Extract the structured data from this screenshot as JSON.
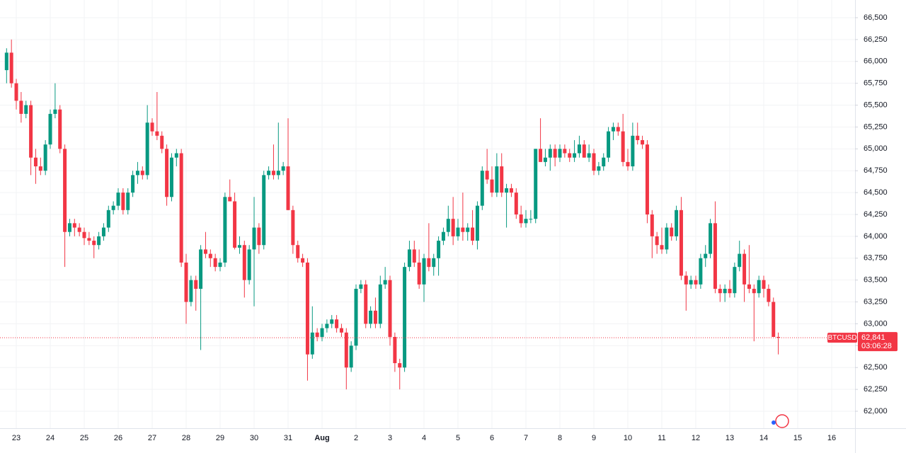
{
  "chart_data": {
    "type": "candlestick",
    "symbol": "BTCUSD",
    "last_price": {
      "value": 62841,
      "label": "62,841"
    },
    "countdown": "03:06:28",
    "up_color": "#089981",
    "down_color": "#f23645",
    "grid": true,
    "ylim": [
      61806,
      66702
    ],
    "yticks": [
      {
        "value": 62000,
        "label": "62,000"
      },
      {
        "value": 62250,
        "label": "62,250"
      },
      {
        "value": 62500,
        "label": "62,500"
      },
      {
        "value": 62750,
        "label": "62,750"
      },
      {
        "value": 63000,
        "label": "63,000"
      },
      {
        "value": 63250,
        "label": "63,250"
      },
      {
        "value": 63500,
        "label": "63,500"
      },
      {
        "value": 63750,
        "label": "63,750"
      },
      {
        "value": 64000,
        "label": "64,000"
      },
      {
        "value": 64250,
        "label": "64,250"
      },
      {
        "value": 64500,
        "label": "64,500"
      },
      {
        "value": 64750,
        "label": "64,750"
      },
      {
        "value": 65000,
        "label": "65,000"
      },
      {
        "value": 65250,
        "label": "65,250"
      },
      {
        "value": 65500,
        "label": "65,500"
      },
      {
        "value": 65750,
        "label": "65,750"
      },
      {
        "value": 66000,
        "label": "66,000"
      },
      {
        "value": 66250,
        "label": "66,250"
      },
      {
        "value": 66500,
        "label": "66,500"
      }
    ],
    "categories": [
      null,
      null,
      "23",
      null,
      null,
      null,
      null,
      null,
      null,
      "24",
      null,
      null,
      null,
      null,
      null,
      null,
      "25",
      null,
      null,
      null,
      null,
      null,
      null,
      "26",
      null,
      null,
      null,
      null,
      null,
      null,
      "27",
      null,
      null,
      null,
      null,
      null,
      null,
      "28",
      null,
      null,
      null,
      null,
      null,
      null,
      "29",
      null,
      null,
      null,
      null,
      null,
      null,
      "30",
      null,
      null,
      null,
      null,
      null,
      null,
      "31",
      null,
      null,
      null,
      null,
      null,
      null,
      "Aug",
      null,
      null,
      null,
      null,
      null,
      null,
      "2",
      null,
      null,
      null,
      null,
      null,
      null,
      "3",
      null,
      null,
      null,
      null,
      null,
      null,
      "4",
      null,
      null,
      null,
      null,
      null,
      null,
      "5",
      null,
      null,
      null,
      null,
      null,
      null,
      "6",
      null,
      null,
      null,
      null,
      null,
      null,
      "7",
      null,
      null,
      null,
      null,
      null,
      null,
      "8",
      null,
      null,
      null,
      null,
      null,
      null,
      "9",
      null,
      null,
      null,
      null,
      null,
      null,
      "10",
      null,
      null,
      null,
      null,
      null,
      null,
      "11",
      null,
      null,
      null,
      null,
      null,
      null,
      "12",
      null,
      null,
      null,
      null,
      null,
      null,
      "13",
      null,
      null,
      null,
      null,
      null,
      null,
      "14",
      null,
      null,
      null,
      null,
      null,
      null,
      "15",
      null,
      null,
      null,
      null,
      null,
      null,
      "16"
    ],
    "open": [
      65900,
      66100,
      65750,
      65550,
      65400,
      65500,
      64900,
      64800,
      64750,
      65050,
      65400,
      65450,
      65000,
      64050,
      64150,
      64100,
      64050,
      63980,
      63950,
      63900,
      64000,
      64100,
      64300,
      64350,
      64500,
      64300,
      64500,
      64700,
      64750,
      64700,
      65300,
      65200,
      65150,
      65000,
      64450,
      64900,
      64950,
      63700,
      63250,
      63500,
      63400,
      63850,
      63800,
      63750,
      63650,
      63700,
      64450,
      64400,
      63870,
      63900,
      63500,
      63850,
      64100,
      63900,
      64700,
      64750,
      64700,
      64750,
      64800,
      64300,
      63900,
      63750,
      63700,
      62650,
      62900,
      62850,
      62950,
      63000,
      63050,
      62950,
      62900,
      62500,
      62750,
      63400,
      63450,
      63000,
      63150,
      63000,
      63450,
      63500,
      62850,
      62550,
      62500,
      63650,
      63850,
      63700,
      63450,
      63750,
      63650,
      63750,
      63950,
      64050,
      64200,
      64000,
      64100,
      64050,
      64100,
      63950,
      64350,
      64750,
      64650,
      64500,
      64800,
      64500,
      64550,
      64500,
      64250,
      64150,
      64200,
      64200,
      65000,
      64850,
      64900,
      65000,
      64900,
      65000,
      64950,
      64900,
      64950,
      65050,
      64900,
      64950,
      64750,
      64800,
      64900,
      65200,
      65250,
      65200,
      64850,
      64800,
      65150,
      65100,
      65050,
      64250,
      64000,
      63900,
      63850,
      64100,
      64000,
      64300,
      63550,
      63450,
      63500,
      63450,
      63750,
      63800,
      64150,
      63400,
      63350,
      63400,
      63350,
      63650,
      63800,
      63450,
      63400,
      63350,
      63500,
      63400,
      63250,
      62850,
      null,
      null,
      null,
      null,
      null,
      null,
      null,
      null,
      null,
      null,
      null
    ],
    "high": [
      66150,
      66250,
      65800,
      65650,
      65550,
      65550,
      65000,
      64900,
      65100,
      65450,
      65750,
      65500,
      65050,
      64200,
      64200,
      64150,
      64100,
      64050,
      64000,
      64050,
      64150,
      64350,
      64400,
      64550,
      64550,
      64550,
      64750,
      64850,
      64800,
      65500,
      65350,
      65650,
      65200,
      65050,
      64950,
      65000,
      65000,
      63800,
      63550,
      63550,
      63900,
      64050,
      63850,
      63800,
      63750,
      64500,
      64650,
      64500,
      64000,
      63950,
      63900,
      64450,
      64150,
      64750,
      64800,
      65050,
      65300,
      64850,
      65350,
      64350,
      63950,
      63800,
      63750,
      63200,
      62950,
      63000,
      63050,
      63100,
      63100,
      63000,
      62950,
      62800,
      63450,
      63500,
      63500,
      63200,
      63300,
      63550,
      63650,
      63550,
      62900,
      62600,
      63700,
      63950,
      63950,
      63850,
      63800,
      64150,
      63800,
      64000,
      64100,
      64350,
      64450,
      64200,
      64500,
      64150,
      64300,
      64400,
      64800,
      65000,
      64800,
      64950,
      64950,
      64600,
      64600,
      64550,
      64350,
      64300,
      64300,
      65000,
      65350,
      65000,
      65050,
      65050,
      65050,
      65050,
      65000,
      65100,
      65150,
      65100,
      65050,
      65000,
      64850,
      64950,
      65250,
      65300,
      65300,
      65400,
      65000,
      65300,
      65300,
      65150,
      65100,
      64300,
      64050,
      64100,
      64150,
      64150,
      64350,
      64450,
      63600,
      63550,
      63550,
      63800,
      63900,
      64200,
      64400,
      63450,
      63450,
      63500,
      63700,
      63950,
      63850,
      63900,
      63450,
      63550,
      63550,
      63450,
      63300,
      62900,
      null,
      null,
      null,
      null,
      null,
      null,
      null,
      null,
      null,
      null,
      null
    ],
    "low": [
      65750,
      65700,
      65450,
      65300,
      65350,
      64700,
      64600,
      64700,
      64700,
      65000,
      65350,
      64950,
      63650,
      64000,
      64000,
      64000,
      63900,
      63900,
      63750,
      63850,
      63950,
      64050,
      64250,
      64300,
      64250,
      64250,
      64450,
      64600,
      64650,
      64650,
      65150,
      65100,
      64950,
      64350,
      64400,
      64800,
      63650,
      63000,
      63200,
      63150,
      62700,
      63750,
      63650,
      63600,
      63600,
      63650,
      64400,
      63850,
      63800,
      63300,
      63450,
      63200,
      63800,
      63850,
      64650,
      64650,
      64650,
      64700,
      64300,
      63800,
      63700,
      63650,
      62350,
      62600,
      62800,
      62800,
      62900,
      62950,
      62900,
      62850,
      62250,
      62450,
      62700,
      63350,
      62950,
      62950,
      62950,
      62950,
      63400,
      62750,
      62450,
      62250,
      62450,
      63600,
      63650,
      63400,
      63250,
      63600,
      63550,
      63550,
      63900,
      64000,
      63900,
      63950,
      63950,
      63950,
      63900,
      63850,
      64300,
      64600,
      64450,
      64450,
      64450,
      64100,
      64450,
      64200,
      64100,
      64100,
      64150,
      64150,
      64850,
      64800,
      64750,
      64800,
      64850,
      64900,
      64850,
      64850,
      64900,
      64900,
      64850,
      64700,
      64700,
      64750,
      64850,
      65100,
      65150,
      64800,
      64750,
      64750,
      65050,
      65000,
      64150,
      63750,
      63800,
      63800,
      63800,
      63950,
      63950,
      63500,
      63150,
      63400,
      63400,
      63400,
      63650,
      63750,
      63350,
      63250,
      63250,
      63300,
      63300,
      63600,
      63250,
      63350,
      62800,
      63300,
      63300,
      63200,
      62850,
      62650,
      null,
      null,
      null,
      null,
      null,
      null,
      null,
      null,
      null,
      null,
      null
    ],
    "close": [
      66100,
      65750,
      65550,
      65400,
      65500,
      64900,
      64800,
      64750,
      65050,
      65400,
      65450,
      65000,
      64050,
      64150,
      64100,
      64050,
      63980,
      63950,
      63900,
      64000,
      64100,
      64300,
      64350,
      64500,
      64300,
      64500,
      64700,
      64750,
      64700,
      65300,
      65200,
      65150,
      65000,
      64450,
      64900,
      64950,
      63700,
      63250,
      63500,
      63400,
      63850,
      63800,
      63750,
      63650,
      63700,
      64450,
      64400,
      63870,
      63900,
      63500,
      63850,
      64100,
      63900,
      64700,
      64750,
      64700,
      64750,
      64800,
      64300,
      63900,
      63750,
      63700,
      62650,
      62900,
      62850,
      62950,
      63000,
      63050,
      62950,
      62900,
      62500,
      62750,
      63400,
      63450,
      63000,
      63150,
      63000,
      63450,
      63500,
      62850,
      62550,
      62500,
      63650,
      63850,
      63700,
      63450,
      63750,
      63650,
      63750,
      63950,
      64050,
      64200,
      64000,
      64100,
      64050,
      64100,
      63950,
      64350,
      64750,
      64650,
      64500,
      64800,
      64500,
      64550,
      64500,
      64250,
      64150,
      64200,
      64200,
      65000,
      64850,
      64900,
      65000,
      64900,
      65000,
      64950,
      64900,
      64950,
      65050,
      64900,
      64950,
      64750,
      64800,
      64900,
      65200,
      65250,
      65200,
      64850,
      64800,
      65150,
      65100,
      65050,
      64250,
      64000,
      63900,
      63850,
      64100,
      64000,
      64300,
      63550,
      63450,
      63500,
      63450,
      63750,
      63800,
      64150,
      63400,
      63350,
      63400,
      63350,
      63650,
      63800,
      63450,
      63400,
      63350,
      63500,
      63400,
      63250,
      62850,
      62841,
      null,
      null,
      null,
      null,
      null,
      null,
      null,
      null,
      null,
      null,
      null
    ]
  }
}
